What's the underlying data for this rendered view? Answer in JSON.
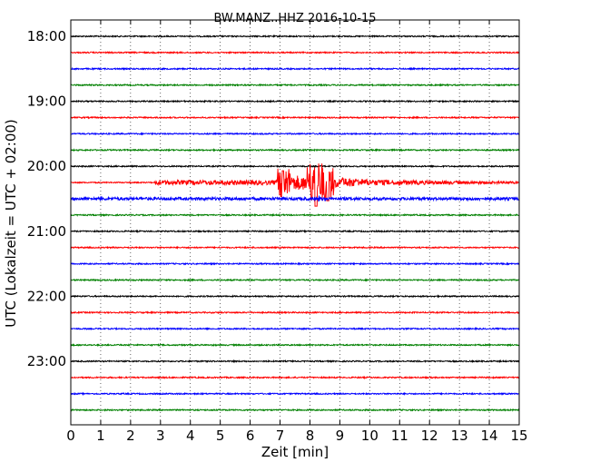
{
  "chart_data": {
    "type": "line",
    "title": "BW.MANZ..HHZ 2016-10-15",
    "xlabel": "Zeit  [min]",
    "ylabel": "UTC (Lokalzeit = UTC + 02:00)",
    "xlim": [
      0,
      15
    ],
    "x_ticks": [
      "0",
      "1",
      "2",
      "3",
      "4",
      "5",
      "6",
      "7",
      "8",
      "9",
      "10",
      "11",
      "12",
      "13",
      "14",
      "15"
    ],
    "y_ticks": [
      "18:00",
      "19:00",
      "20:00",
      "21:00",
      "22:00",
      "23:00"
    ],
    "grid": "vertical dotted at each minute",
    "trace_colors": [
      "#000000",
      "#ff0000",
      "#0000ff",
      "#008000"
    ],
    "traces_per_hour": 4,
    "minutes_per_trace": 15,
    "start_hour": 18,
    "n_traces": 24,
    "series": [
      {
        "start": "18:00",
        "color": "#000000",
        "activity": "quiet"
      },
      {
        "start": "18:15",
        "color": "#ff0000",
        "activity": "quiet"
      },
      {
        "start": "18:30",
        "color": "#0000ff",
        "activity": "quiet"
      },
      {
        "start": "18:45",
        "color": "#008000",
        "activity": "quiet"
      },
      {
        "start": "19:00",
        "color": "#000000",
        "activity": "quiet"
      },
      {
        "start": "19:15",
        "color": "#ff0000",
        "activity": "quiet"
      },
      {
        "start": "19:30",
        "color": "#0000ff",
        "activity": "quiet"
      },
      {
        "start": "19:45",
        "color": "#008000",
        "activity": "quiet"
      },
      {
        "start": "20:00",
        "color": "#000000",
        "activity": "quiet"
      },
      {
        "start": "20:15",
        "color": "#ff0000",
        "activity": "earthquake",
        "event_start_min": 2.8,
        "event_peak_min": 8.2
      },
      {
        "start": "20:30",
        "color": "#0000ff",
        "activity": "noisy"
      },
      {
        "start": "20:45",
        "color": "#008000",
        "activity": "quiet"
      },
      {
        "start": "21:00",
        "color": "#000000",
        "activity": "quiet"
      },
      {
        "start": "21:15",
        "color": "#ff0000",
        "activity": "quiet"
      },
      {
        "start": "21:30",
        "color": "#0000ff",
        "activity": "quiet"
      },
      {
        "start": "21:45",
        "color": "#008000",
        "activity": "quiet"
      },
      {
        "start": "22:00",
        "color": "#000000",
        "activity": "quiet"
      },
      {
        "start": "22:15",
        "color": "#ff0000",
        "activity": "quiet"
      },
      {
        "start": "22:30",
        "color": "#0000ff",
        "activity": "quiet"
      },
      {
        "start": "22:45",
        "color": "#008000",
        "activity": "quiet"
      },
      {
        "start": "23:00",
        "color": "#000000",
        "activity": "quiet"
      },
      {
        "start": "23:15",
        "color": "#ff0000",
        "activity": "quiet"
      },
      {
        "start": "23:30",
        "color": "#0000ff",
        "activity": "quiet"
      },
      {
        "start": "23:45",
        "color": "#008000",
        "activity": "quiet"
      }
    ]
  }
}
